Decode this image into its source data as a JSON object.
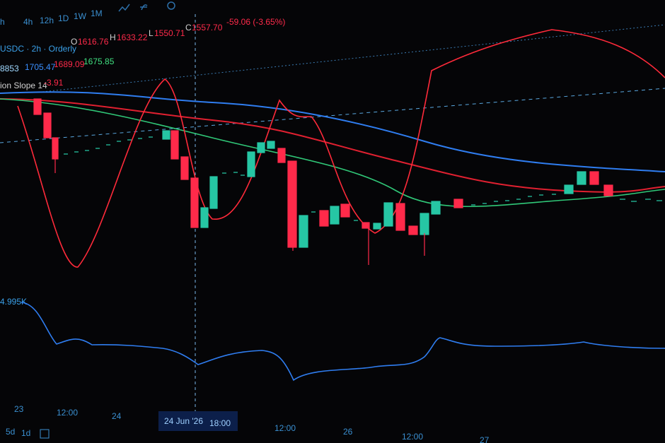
{
  "toolbar": {
    "intervals": [
      "h",
      "4h",
      "12h",
      "1D",
      "1W",
      "1M"
    ]
  },
  "legend": {
    "symbol": "USDC · 2h · Orderly",
    "ohlc": [
      {
        "key": "O",
        "value": "1616.76"
      },
      {
        "key": "H",
        "value": "1633.22"
      },
      {
        "key": "L",
        "value": "1550.71"
      },
      {
        "key": "C",
        "value": "1557.70"
      }
    ],
    "change": "-59.06 (-3.65%)",
    "ma_line": [
      "8853",
      "1705.47",
      "1689.09",
      "1675.85"
    ],
    "indicator": "ion Slope 14",
    "indicator_value": "-3.91"
  },
  "volume_label": "4.995K",
  "time_axis": [
    "23",
    "12:00",
    "24",
    "12:00",
    "26",
    "12:00",
    "27"
  ],
  "crosshair": {
    "date": "24 Jun '26",
    "time": "18:00"
  },
  "range_buttons": [
    "5d",
    "1d"
  ]
}
